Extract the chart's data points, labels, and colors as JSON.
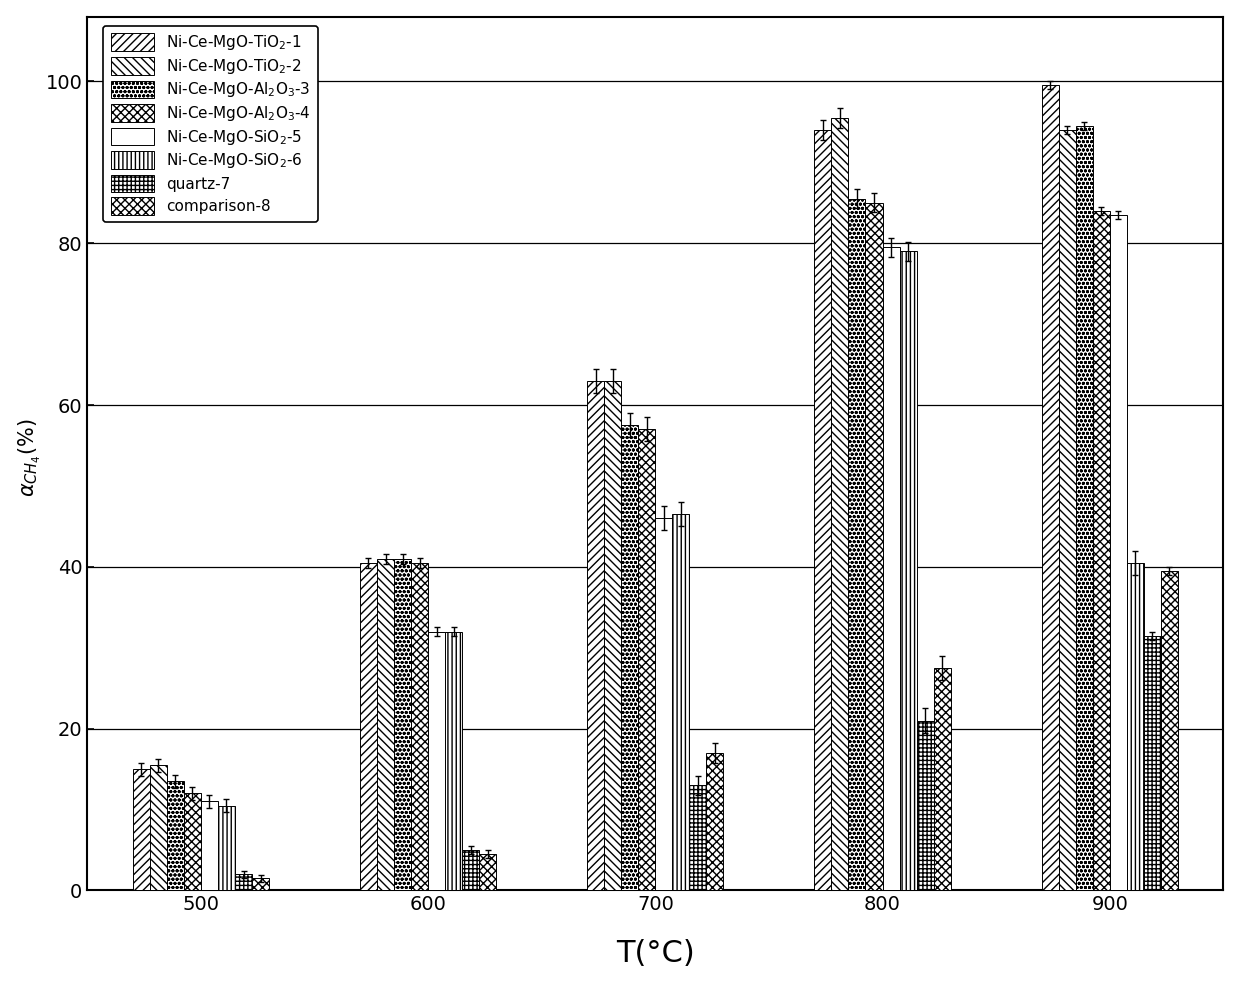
{
  "temperatures": [
    500,
    600,
    700,
    800,
    900
  ],
  "series_labels": [
    "Ni-Ce-MgO-TiO$_2$-1",
    "Ni-Ce-MgO-TiO$_2$-2",
    "Ni-Ce-MgO-Al$_2$O$_3$-3",
    "Ni-Ce-MgO-Al$_2$O$_3$-4",
    "Ni-Ce-MgO-SiO$_2$-5",
    "Ni-Ce-MgO-SiO$_2$-6",
    "quartz-7",
    "comparison-8"
  ],
  "values": [
    [
      15.0,
      40.5,
      63.0,
      94.0,
      99.5
    ],
    [
      15.5,
      41.0,
      63.0,
      95.5,
      94.0
    ],
    [
      13.5,
      41.0,
      57.5,
      85.5,
      94.5
    ],
    [
      12.0,
      40.5,
      57.0,
      85.0,
      84.0
    ],
    [
      11.0,
      32.0,
      46.0,
      79.5,
      83.5
    ],
    [
      10.5,
      32.0,
      46.5,
      79.0,
      40.5
    ],
    [
      2.0,
      5.0,
      13.0,
      21.0,
      31.5
    ],
    [
      1.5,
      4.5,
      17.0,
      27.5,
      39.5
    ]
  ],
  "errors": [
    [
      0.8,
      0.6,
      1.5,
      1.2,
      0.5
    ],
    [
      0.8,
      0.6,
      1.5,
      1.2,
      0.5
    ],
    [
      0.8,
      0.6,
      1.5,
      1.2,
      0.5
    ],
    [
      0.8,
      0.6,
      1.5,
      1.2,
      0.5
    ],
    [
      0.8,
      0.6,
      1.5,
      1.2,
      0.5
    ],
    [
      0.8,
      0.6,
      1.5,
      1.2,
      1.5
    ],
    [
      0.4,
      0.5,
      1.2,
      1.5,
      0.5
    ],
    [
      0.4,
      0.5,
      1.2,
      1.5,
      0.5
    ]
  ],
  "ylim": [
    0,
    108
  ],
  "yticks": [
    0,
    20,
    40,
    60,
    80,
    100
  ],
  "ylabel": "$\\alpha_{CH_4}$(%)  ",
  "xlabel": "T(°C)",
  "bar_width": 0.075,
  "background_color": "white",
  "legend_fontsize": 11,
  "axis_fontsize": 15,
  "tick_fontsize": 14
}
